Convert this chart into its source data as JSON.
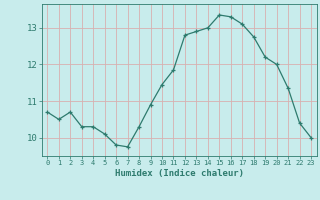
{
  "x": [
    0,
    1,
    2,
    3,
    4,
    5,
    6,
    7,
    8,
    9,
    10,
    11,
    12,
    13,
    14,
    15,
    16,
    17,
    18,
    19,
    20,
    21,
    22,
    23
  ],
  "y": [
    10.7,
    10.5,
    10.7,
    10.3,
    10.3,
    10.1,
    9.8,
    9.75,
    10.3,
    10.9,
    11.45,
    11.85,
    12.8,
    12.9,
    13.0,
    13.35,
    13.3,
    13.1,
    12.75,
    12.2,
    12.0,
    11.35,
    10.4,
    10.0
  ],
  "xlabel": "Humidex (Indice chaleur)",
  "bg_color": "#c8ecec",
  "grid_color": "#d8b0b0",
  "line_color": "#2e7b6e",
  "marker_color": "#2e7b6e",
  "tick_color": "#2e7b6e",
  "label_color": "#2e7b6e",
  "ylim": [
    9.5,
    13.65
  ],
  "yticks": [
    10,
    11,
    12,
    13
  ],
  "xticks": [
    0,
    1,
    2,
    3,
    4,
    5,
    6,
    7,
    8,
    9,
    10,
    11,
    12,
    13,
    14,
    15,
    16,
    17,
    18,
    19,
    20,
    21,
    22,
    23
  ]
}
